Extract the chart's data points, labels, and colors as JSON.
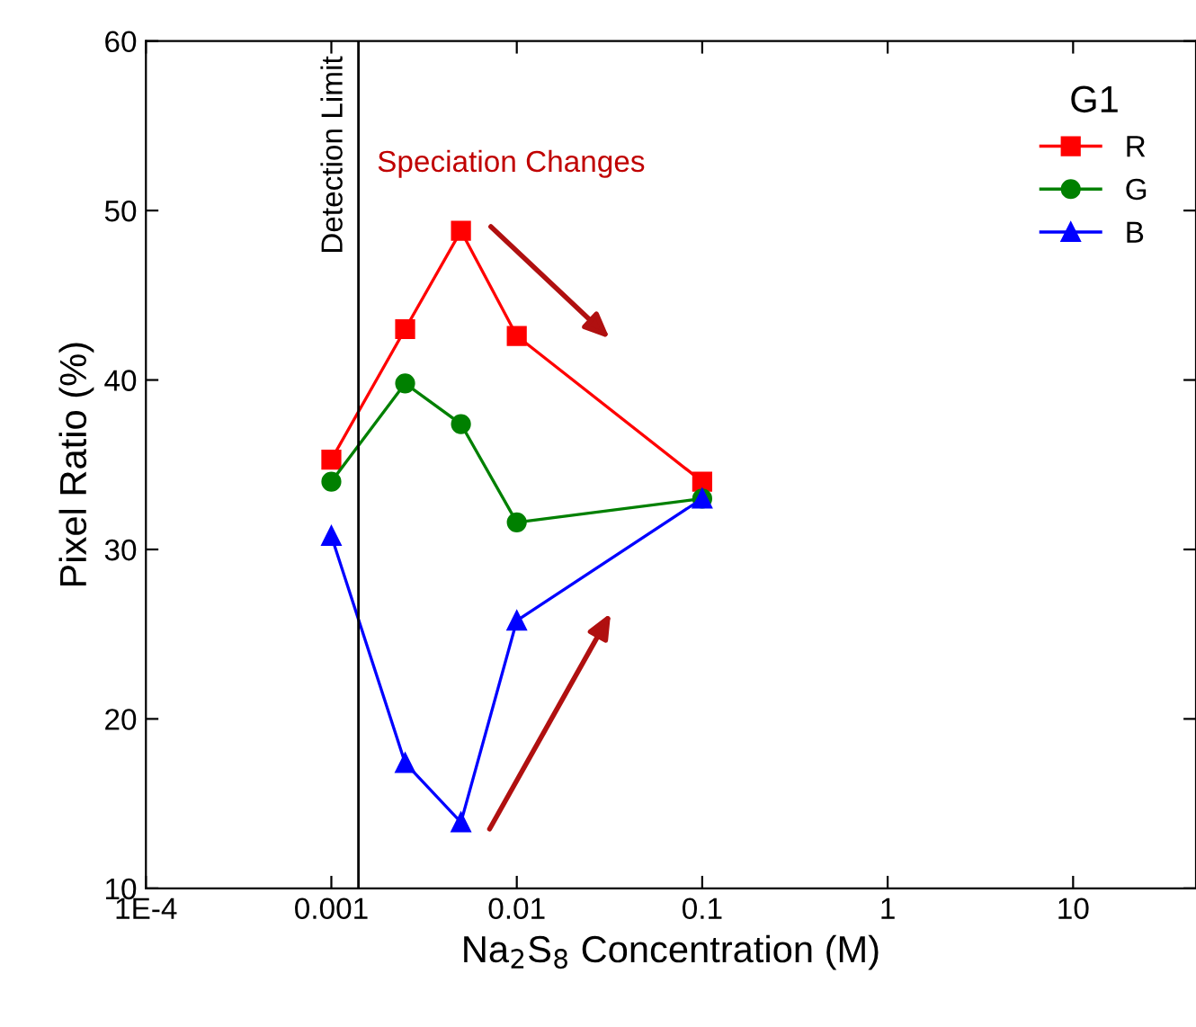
{
  "chart_data": {
    "type": "line",
    "xlabel": "Na$_{2}$S$_{8}$ Concentration (M)",
    "ylabel": "Pixel Ratio (%)",
    "legend_title": "G1",
    "x": [
      0.001,
      0.0025,
      0.005,
      0.01,
      0.1
    ],
    "series": [
      {
        "name": "R",
        "color": "#ff0000",
        "marker": "square",
        "values": [
          35.3,
          43.0,
          48.8,
          42.6,
          34.0
        ]
      },
      {
        "name": "G",
        "color": "#008000",
        "marker": "circle",
        "values": [
          34.0,
          39.8,
          37.4,
          31.6,
          33.0
        ]
      },
      {
        "name": "B",
        "color": "#0000ff",
        "marker": "triangle",
        "values": [
          30.8,
          17.4,
          13.9,
          25.8,
          33.0
        ]
      }
    ],
    "log": "x",
    "xlim": [
      0.0001,
      46
    ],
    "xticks": [
      {
        "value": 0.0001,
        "label": "1E-4"
      },
      0.001,
      0.01,
      0.1,
      1,
      10
    ],
    "ylim": [
      10,
      60
    ],
    "yticks": [
      10,
      20,
      30,
      40,
      50,
      60
    ],
    "ref_lines": [
      {
        "axis": "x",
        "value": 0.0014,
        "label": "Detection Limit",
        "color": "#000000"
      }
    ],
    "annotations": [
      "Speciation Changes"
    ],
    "legend": "top right",
    "grid": false,
    "line_style": "solid"
  }
}
